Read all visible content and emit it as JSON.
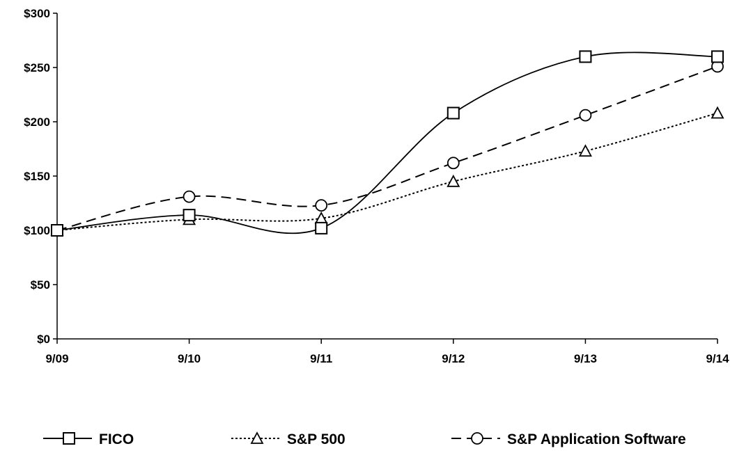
{
  "chart_data": {
    "type": "line",
    "categories": [
      "9/09",
      "9/10",
      "9/11",
      "9/12",
      "9/13",
      "9/14"
    ],
    "y_tick_labels": [
      "$0",
      "$50",
      "$100",
      "$150",
      "$200",
      "$250",
      "$300"
    ],
    "ylim": [
      0,
      300
    ],
    "y_ticks": [
      0,
      50,
      100,
      150,
      200,
      250,
      300
    ],
    "grid": false,
    "legend_position": "bottom",
    "series": [
      {
        "name": "FICO",
        "marker": "square",
        "line_style": "solid",
        "smooth": true,
        "color": "#000000",
        "values": [
          100,
          114,
          102,
          208,
          260,
          260
        ]
      },
      {
        "name": "S&P 500",
        "marker": "triangle",
        "line_style": "dotted",
        "smooth": true,
        "color": "#000000",
        "values": [
          100,
          110,
          111,
          145,
          173,
          208
        ]
      },
      {
        "name": "S&P Application Software",
        "marker": "circle",
        "line_style": "dashed",
        "smooth": true,
        "color": "#000000",
        "values": [
          100,
          131,
          123,
          162,
          206,
          251
        ]
      }
    ]
  }
}
